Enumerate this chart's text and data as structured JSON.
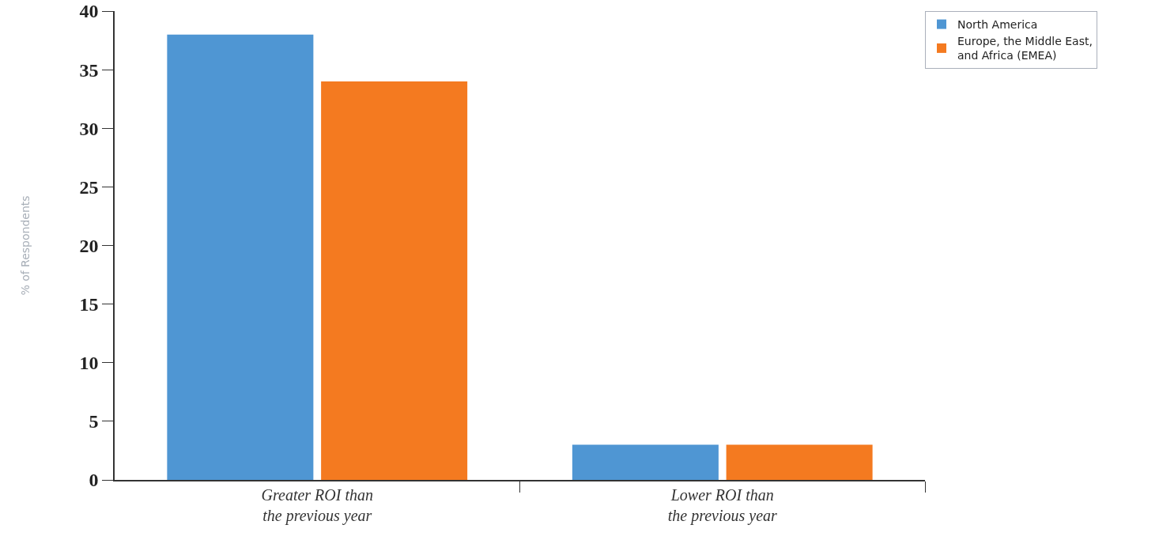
{
  "chart_data": {
    "type": "bar",
    "ylabel": "% of Respondents",
    "categories": [
      "Greater ROI than the previous year",
      "Lower ROI than the previous year"
    ],
    "series": [
      {
        "name": "North America",
        "color": "#4f96d3",
        "values": [
          38,
          3
        ]
      },
      {
        "name": "Europe, the Middle East, and Africa (EMEA)",
        "color": "#f47a20",
        "values": [
          34,
          3
        ]
      }
    ],
    "ylim": [
      0,
      40
    ],
    "yticks": [
      0,
      5,
      10,
      15,
      20,
      25,
      30,
      35,
      40
    ],
    "legend": "top right"
  }
}
